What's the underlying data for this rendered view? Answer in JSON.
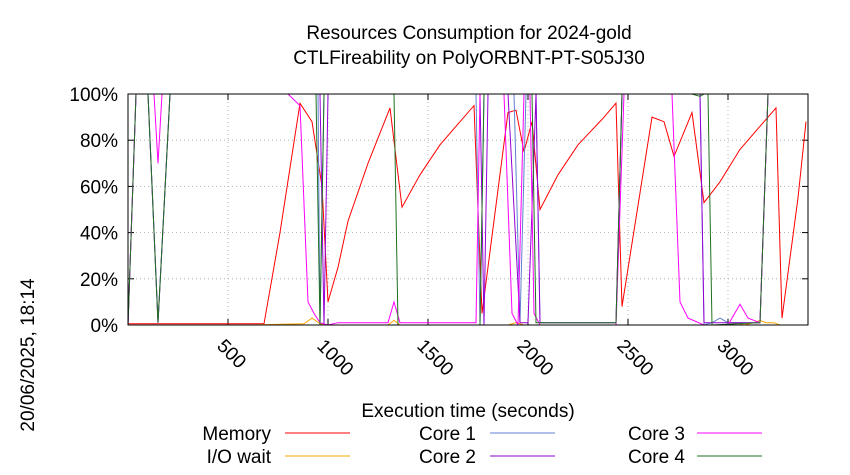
{
  "chart_data": {
    "type": "line",
    "title": "Resources Consumption for 2024-gold",
    "subtitle": "CTLFireability on PolyORBNT-PT-S05J30",
    "xlabel": "Execution time (seconds)",
    "ylabel": "",
    "side_label": "20/06/2025, 18:14",
    "xlim": [
      0,
      3400
    ],
    "ylim": [
      0,
      100
    ],
    "x_ticks": [
      500,
      1000,
      1500,
      2000,
      2500,
      3000
    ],
    "y_ticks": [
      0,
      20,
      40,
      60,
      80,
      100
    ],
    "y_tick_labels": [
      "0%",
      "20%",
      "40%",
      "60%",
      "80%",
      "100%"
    ],
    "grid": true,
    "legend_position": "bottom",
    "series": [
      {
        "name": "Memory",
        "color": "#ff0000",
        "points": [
          [
            0,
            0.5
          ],
          [
            100,
            0.5
          ],
          [
            200,
            0.5
          ],
          [
            300,
            0.5
          ],
          [
            400,
            0.5
          ],
          [
            500,
            0.5
          ],
          [
            600,
            0.5
          ],
          [
            680,
            0.5
          ],
          [
            760,
            40
          ],
          [
            860,
            96
          ],
          [
            920,
            88
          ],
          [
            970,
            60
          ],
          [
            1000,
            10
          ],
          [
            1050,
            25
          ],
          [
            1100,
            45
          ],
          [
            1200,
            70
          ],
          [
            1310,
            94
          ],
          [
            1370,
            51
          ],
          [
            1460,
            65
          ],
          [
            1560,
            78
          ],
          [
            1660,
            88
          ],
          [
            1730,
            95
          ],
          [
            1770,
            5
          ],
          [
            1900,
            92
          ],
          [
            1940,
            93
          ],
          [
            1980,
            75
          ],
          [
            2020,
            88
          ],
          [
            2060,
            50
          ],
          [
            2150,
            65
          ],
          [
            2250,
            78
          ],
          [
            2370,
            89
          ],
          [
            2440,
            96
          ],
          [
            2470,
            8
          ],
          [
            2620,
            90
          ],
          [
            2680,
            88
          ],
          [
            2730,
            73
          ],
          [
            2820,
            92
          ],
          [
            2880,
            53
          ],
          [
            2960,
            62
          ],
          [
            3060,
            76
          ],
          [
            3160,
            86
          ],
          [
            3240,
            94
          ],
          [
            3270,
            3
          ],
          [
            3350,
            55
          ],
          [
            3390,
            88
          ]
        ]
      },
      {
        "name": "I/O wait",
        "color": "#ffa500",
        "points": [
          [
            0,
            0
          ],
          [
            100,
            0
          ],
          [
            300,
            0
          ],
          [
            600,
            0
          ],
          [
            880,
            0.5
          ],
          [
            920,
            3
          ],
          [
            960,
            0.5
          ],
          [
            1000,
            0
          ],
          [
            1300,
            0
          ],
          [
            1330,
            2
          ],
          [
            1360,
            0
          ],
          [
            1700,
            0
          ],
          [
            1900,
            0
          ],
          [
            1940,
            1
          ],
          [
            1980,
            0
          ],
          [
            2500,
            0
          ],
          [
            3000,
            0
          ],
          [
            3040,
            1
          ],
          [
            3080,
            0
          ],
          [
            3130,
            1
          ],
          [
            3160,
            2
          ],
          [
            3190,
            1
          ],
          [
            3230,
            1
          ],
          [
            3260,
            0
          ],
          [
            3390,
            0
          ]
        ]
      },
      {
        "name": "Core 1",
        "color": "#6080d0",
        "points": [
          [
            0,
            0
          ],
          [
            40,
            100
          ],
          [
            100,
            100
          ],
          [
            150,
            1
          ],
          [
            210,
            100
          ],
          [
            400,
            100
          ],
          [
            880,
            100
          ],
          [
            950,
            100
          ],
          [
            960,
            0
          ],
          [
            980,
            100
          ],
          [
            1000,
            100
          ],
          [
            1700,
            100
          ],
          [
            1740,
            100
          ],
          [
            1760,
            0
          ],
          [
            1780,
            100
          ],
          [
            1900,
            100
          ],
          [
            1930,
            100
          ],
          [
            1960,
            1
          ],
          [
            1990,
            100
          ],
          [
            2040,
            100
          ],
          [
            2060,
            1
          ],
          [
            2440,
            1
          ],
          [
            2470,
            100
          ],
          [
            2730,
            100
          ],
          [
            2760,
            100
          ],
          [
            2860,
            100
          ],
          [
            2880,
            0
          ],
          [
            2920,
            1
          ],
          [
            2960,
            3
          ],
          [
            3000,
            1
          ],
          [
            3160,
            1
          ],
          [
            3200,
            100
          ],
          [
            3390,
            100
          ]
        ]
      },
      {
        "name": "Core 2",
        "color": "#9400d3",
        "points": [
          [
            0,
            0
          ],
          [
            40,
            100
          ],
          [
            100,
            100
          ],
          [
            150,
            1
          ],
          [
            210,
            100
          ],
          [
            900,
            100
          ],
          [
            960,
            100
          ],
          [
            980,
            0
          ],
          [
            1000,
            100
          ],
          [
            1700,
            100
          ],
          [
            1760,
            100
          ],
          [
            1780,
            0
          ],
          [
            1800,
            100
          ],
          [
            1900,
            100
          ],
          [
            1960,
            1
          ],
          [
            2000,
            1
          ],
          [
            2040,
            100
          ],
          [
            2060,
            1
          ],
          [
            2440,
            1
          ],
          [
            2470,
            100
          ],
          [
            2860,
            100
          ],
          [
            2880,
            1
          ],
          [
            3160,
            1
          ],
          [
            3200,
            100
          ],
          [
            3390,
            100
          ]
        ]
      },
      {
        "name": "Core 3",
        "color": "#ff00ff",
        "points": [
          [
            0,
            0
          ],
          [
            40,
            100
          ],
          [
            130,
            100
          ],
          [
            150,
            70
          ],
          [
            170,
            100
          ],
          [
            800,
            100
          ],
          [
            860,
            95
          ],
          [
            900,
            10
          ],
          [
            930,
            5
          ],
          [
            960,
            1
          ],
          [
            1000,
            0
          ],
          [
            1050,
            1
          ],
          [
            1300,
            1
          ],
          [
            1330,
            10
          ],
          [
            1360,
            1
          ],
          [
            1700,
            1
          ],
          [
            1740,
            1
          ],
          [
            1760,
            100
          ],
          [
            1800,
            100
          ],
          [
            1880,
            100
          ],
          [
            1920,
            5
          ],
          [
            1950,
            0
          ],
          [
            1980,
            100
          ],
          [
            2010,
            100
          ],
          [
            2030,
            5
          ],
          [
            2060,
            0
          ],
          [
            2440,
            0
          ],
          [
            2480,
            100
          ],
          [
            2720,
            100
          ],
          [
            2760,
            10
          ],
          [
            2800,
            3
          ],
          [
            2880,
            0
          ],
          [
            3000,
            0
          ],
          [
            3060,
            9
          ],
          [
            3100,
            3
          ],
          [
            3160,
            1
          ],
          [
            3200,
            100
          ],
          [
            3390,
            100
          ]
        ]
      },
      {
        "name": "Core 4",
        "color": "#207020",
        "points": [
          [
            0,
            0
          ],
          [
            40,
            100
          ],
          [
            100,
            100
          ],
          [
            150,
            1
          ],
          [
            210,
            100
          ],
          [
            880,
            100
          ],
          [
            940,
            100
          ],
          [
            960,
            0
          ],
          [
            980,
            100
          ],
          [
            1300,
            100
          ],
          [
            1330,
            100
          ],
          [
            1350,
            0
          ],
          [
            1760,
            0
          ],
          [
            1780,
            100
          ],
          [
            1960,
            100
          ],
          [
            2020,
            100
          ],
          [
            2040,
            1
          ],
          [
            2440,
            1
          ],
          [
            2470,
            100
          ],
          [
            2820,
            100
          ],
          [
            2860,
            99
          ],
          [
            2880,
            100
          ],
          [
            2900,
            100
          ],
          [
            2920,
            0
          ],
          [
            3160,
            1
          ],
          [
            3200,
            100
          ],
          [
            3390,
            100
          ]
        ]
      }
    ]
  }
}
